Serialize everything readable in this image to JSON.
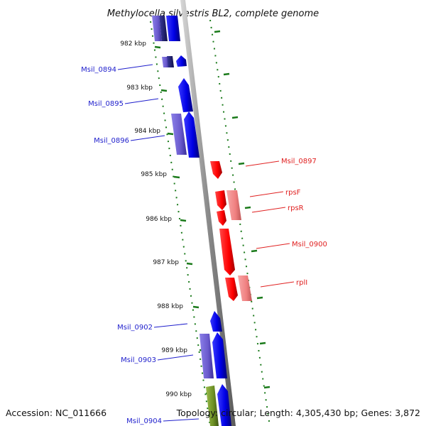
{
  "title": "Methylocella silvestris BL2, complete genome",
  "accession": "Accession: NC_011666",
  "topology": "Topology: circular; Length: 4,305,430 bp; Genes: 3,872",
  "colors": {
    "forward_left": "#0000ee",
    "forward_left_light": "#6a5acd",
    "reverse_right": "#ff0000",
    "reverse_right_light": "#f08080",
    "green": "#6b8e23",
    "tick": "#1a7a1a",
    "backbone": "#999999"
  },
  "ticks": [
    "982 kbp",
    "983 kbp",
    "984 kbp",
    "985 kbp",
    "986 kbp",
    "987 kbp",
    "988 kbp",
    "989 kbp",
    "990 kbp"
  ],
  "gene_labels_left": [
    "Msil_0894",
    "Msil_0895",
    "Msil_0896",
    "Msil_0902",
    "Msil_0903",
    "Msil_0904"
  ],
  "gene_labels_right": [
    "Msil_0897",
    "rpsF",
    "rpsR",
    "Msil_0900",
    "rplI"
  ]
}
